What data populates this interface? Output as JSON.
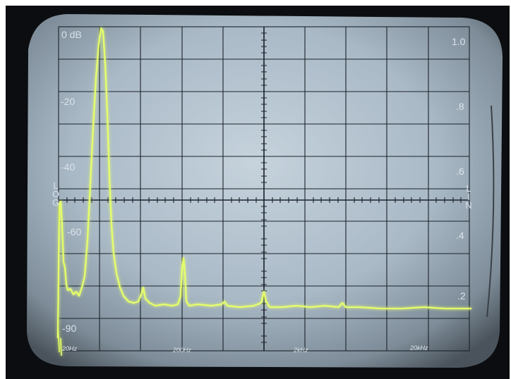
{
  "screen": {
    "log_labels": [
      "0 dB",
      "-20",
      "-40",
      "-60",
      "-90"
    ],
    "lin_labels": [
      "1.0",
      ".8",
      ".6",
      ".4",
      ".2"
    ],
    "frequency_labels": [
      "20Hz",
      "200Hz",
      "2kHz",
      "20kHz"
    ],
    "left_scale_mode": "LOG",
    "right_scale_mode": "LIN"
  },
  "colors": {
    "trace": "#e6ff6a",
    "graticule": "#1c232b",
    "phosphor": "#b6c6d2",
    "bezel": "#0b0d10"
  }
}
